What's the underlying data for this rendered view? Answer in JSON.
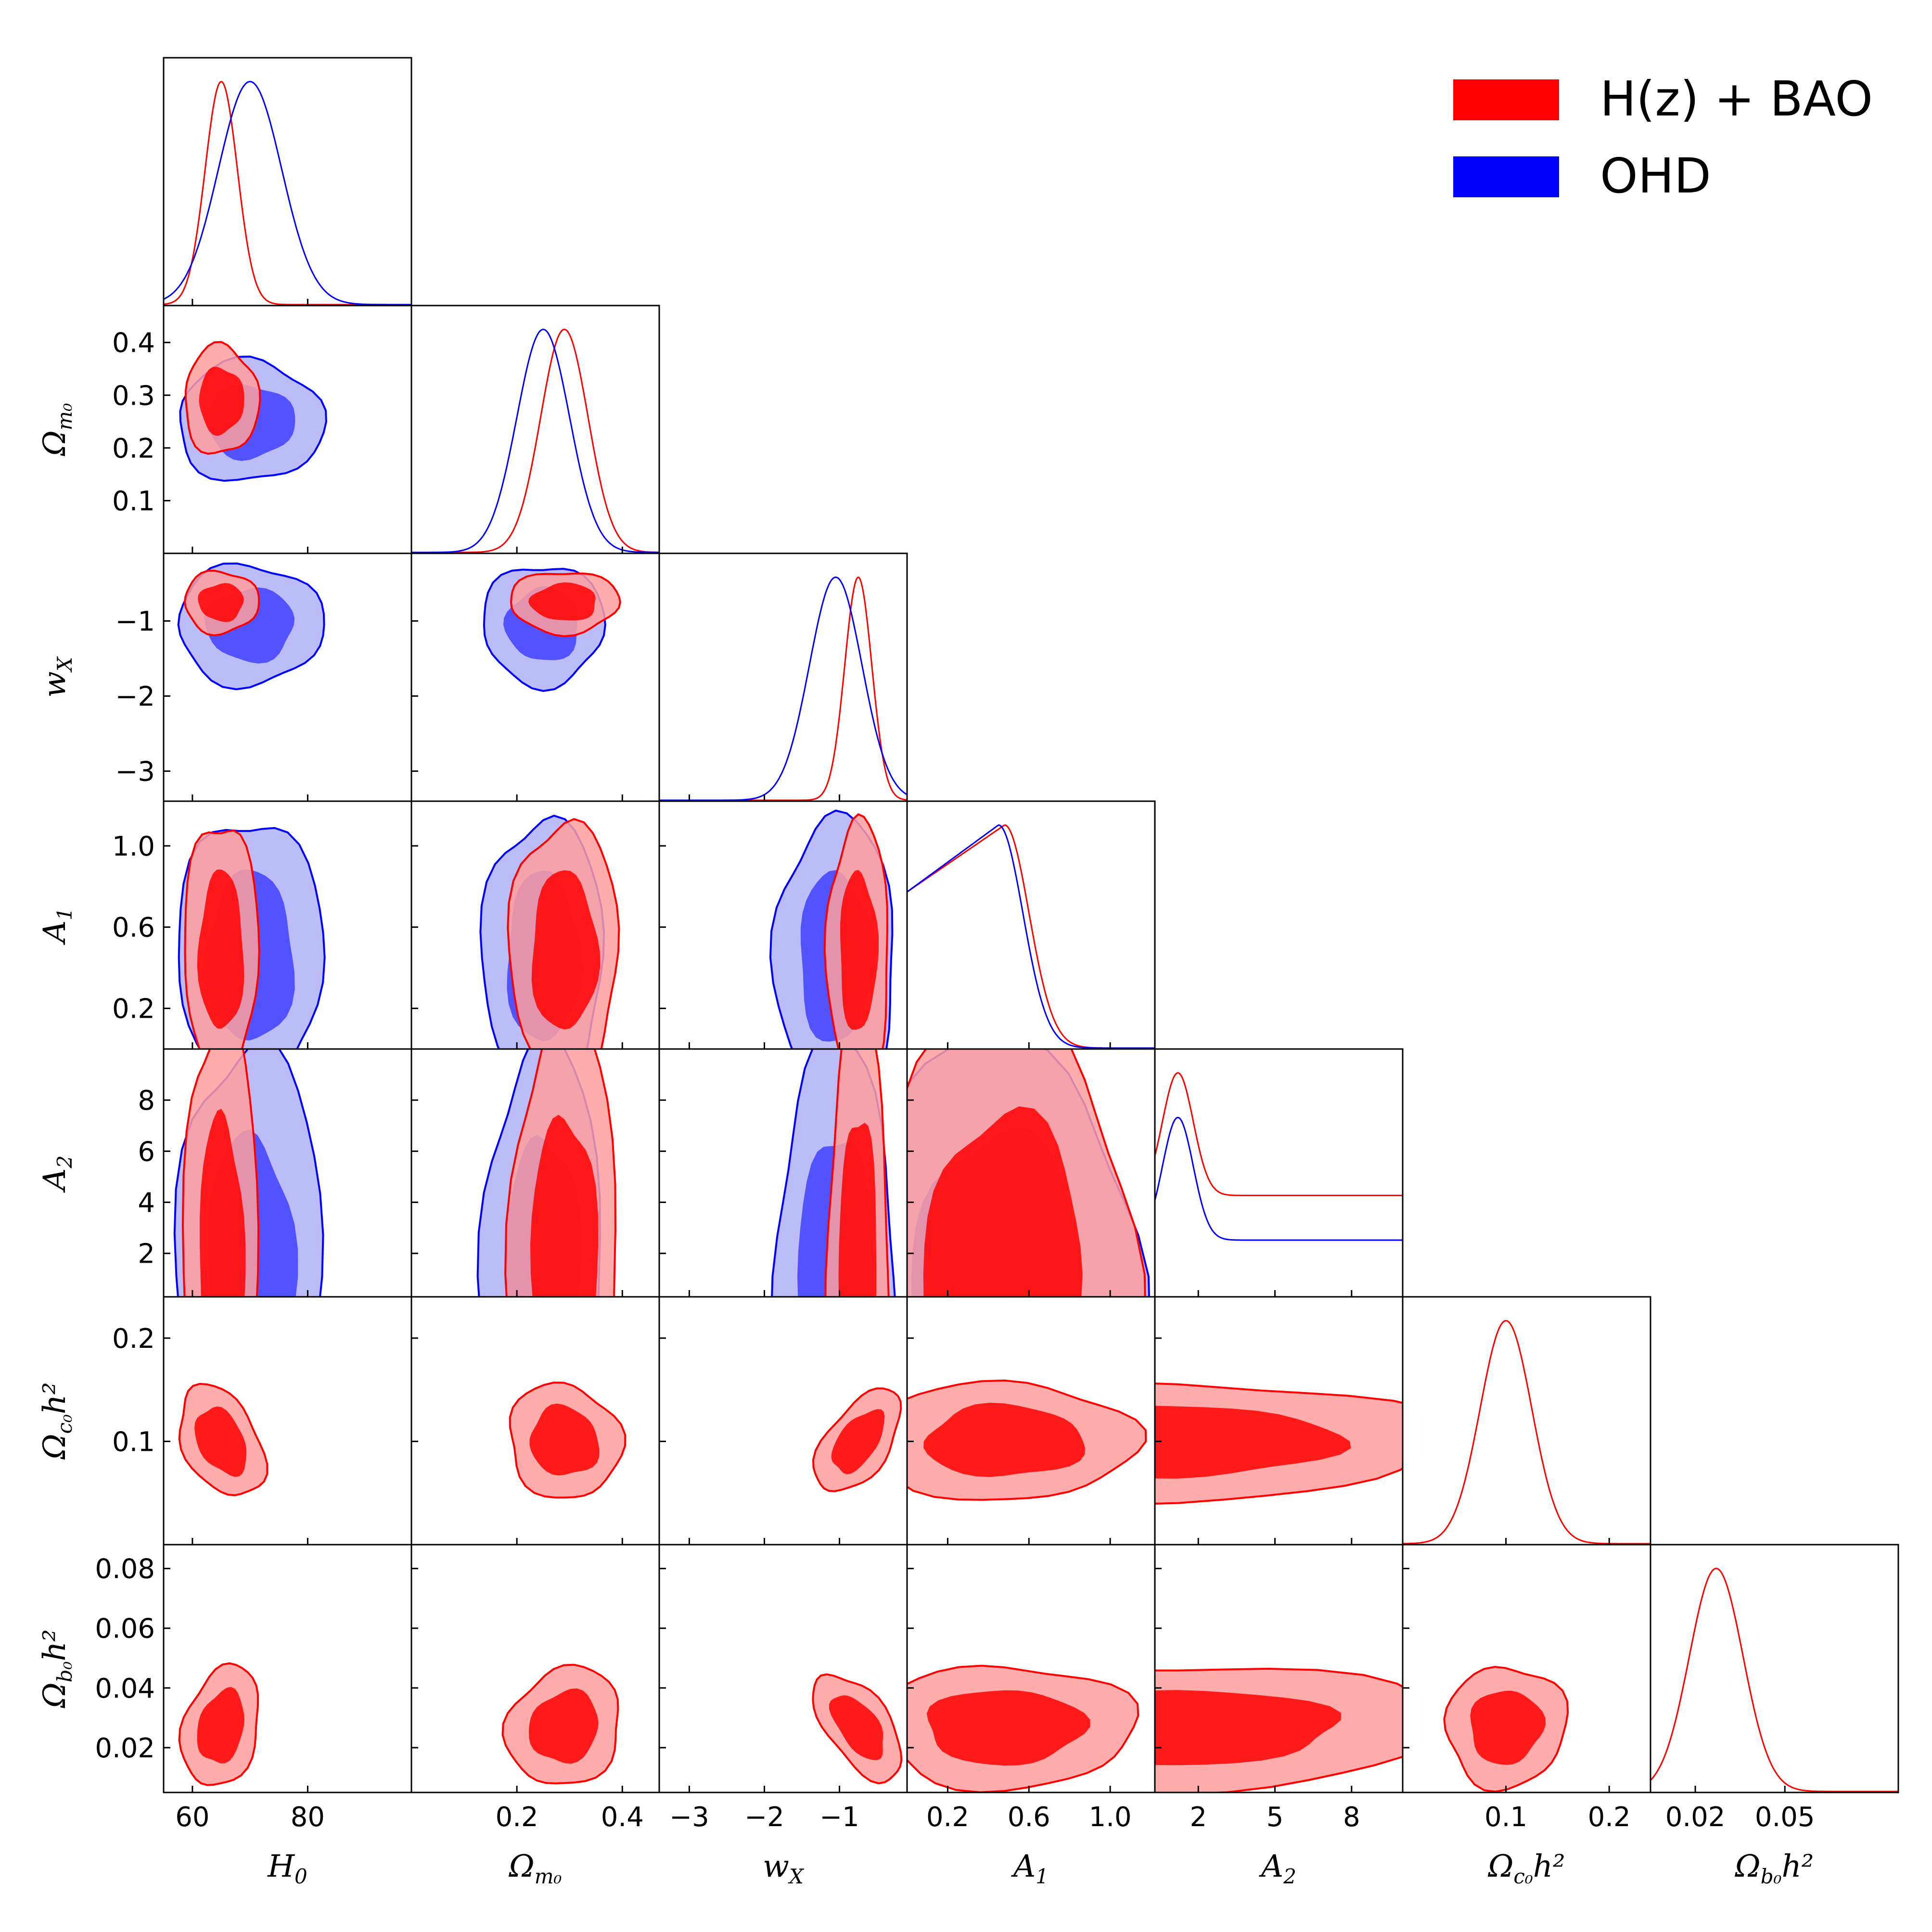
{
  "chart_data": {
    "type": "triangle-corner-plot",
    "parameters": [
      {
        "key": "H0",
        "label": "H",
        "sub": "0",
        "range": [
          55,
          98
        ],
        "ticks": [
          60,
          80
        ],
        "tick_labels": [
          "60",
          "80"
        ]
      },
      {
        "key": "Om",
        "label": "Ω",
        "sub": "m₀",
        "range": [
          0.0,
          0.47
        ],
        "ticks": [
          0.1,
          0.2,
          0.3,
          0.4
        ],
        "tick_labels": [
          "0.1",
          "0.2",
          "0.3",
          "0.4"
        ],
        "x_ticks": [
          0.2,
          0.4
        ],
        "x_tick_labels": [
          "0.2",
          "0.4"
        ]
      },
      {
        "key": "wX",
        "label": "w",
        "sub": "X",
        "range": [
          -3.4,
          -0.1
        ],
        "ticks": [
          -3,
          -2,
          -1
        ],
        "tick_labels": [
          "−3",
          "−2",
          "−1"
        ]
      },
      {
        "key": "A1",
        "label": "A",
        "sub": "1",
        "range": [
          0.0,
          1.22
        ],
        "ticks": [
          0.2,
          0.6,
          1.0
        ],
        "tick_labels": [
          "0.2",
          "0.6",
          "1.0"
        ]
      },
      {
        "key": "A2",
        "label": "A",
        "sub": "2",
        "range": [
          0.3,
          10.0
        ],
        "ticks": [
          2,
          4,
          6,
          8
        ],
        "tick_labels": [
          "2",
          "4",
          "6",
          "8"
        ],
        "x_ticks": [
          2,
          5,
          8
        ],
        "x_tick_labels": [
          "2",
          "5",
          "8"
        ]
      },
      {
        "key": "Och2",
        "label": "Ω",
        "sub": "c₀",
        "suffix": "h²",
        "range": [
          0.0,
          0.24
        ],
        "ticks": [
          0.1,
          0.2
        ],
        "tick_labels": [
          "0.1",
          "0.2"
        ]
      },
      {
        "key": "Obh2",
        "label": "Ω",
        "sub": "b₀",
        "suffix": "h²",
        "range": [
          0.005,
          0.088
        ],
        "ticks": [
          0.02,
          0.04,
          0.06,
          0.08
        ],
        "tick_labels": [
          "0.02",
          "0.04",
          "0.06",
          "0.08"
        ],
        "x_ticks": [
          0.02,
          0.05
        ],
        "x_tick_labels": [
          "0.02",
          "0.05"
        ]
      }
    ],
    "series": [
      {
        "name": "H(z) + BAO",
        "color": "#ff0000",
        "fill_inner": "#ff0000",
        "fill_outer": "#ff9e9e",
        "means": {
          "H0": 65.0,
          "Om": 0.29,
          "wX": -0.75,
          "A1": 0.48,
          "A2": 1.2,
          "Och2": 0.1,
          "Obh2": 0.027
        },
        "sigmas": {
          "H0": 2.8,
          "Om": 0.045,
          "wX": 0.18,
          "A1": 0.28,
          "A2": 4.5,
          "Och2": 0.025,
          "Obh2": 0.009
        }
      },
      {
        "name": "OHD",
        "color": "#0000ff",
        "fill_inner": "#3f3fff",
        "fill_outer": "#b0b0f8",
        "means": {
          "H0": 70.0,
          "Om": 0.25,
          "wX": -1.05,
          "A1": 0.45,
          "A2": 1.1,
          "Och2": null,
          "Obh2": null
        },
        "sigmas": {
          "H0": 5.5,
          "Om": 0.05,
          "wX": 0.35,
          "A1": 0.3,
          "A2": 4.0,
          "Och2": null,
          "Obh2": null
        }
      }
    ],
    "legend_position": "top-right"
  }
}
